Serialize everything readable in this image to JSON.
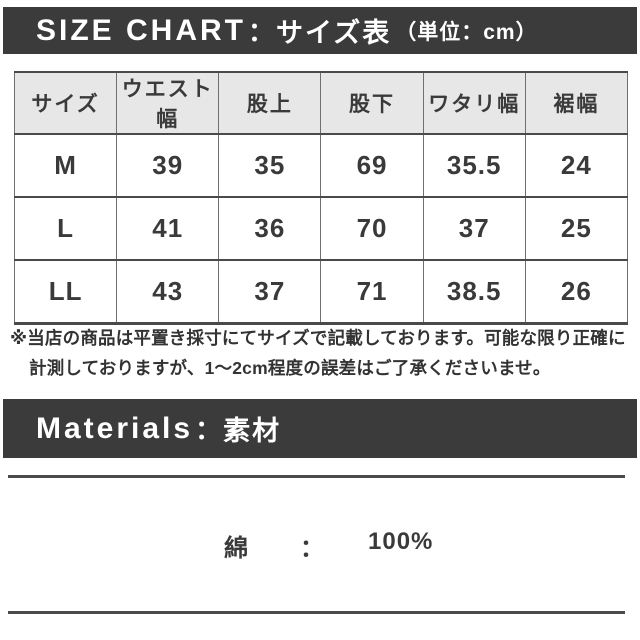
{
  "size_chart": {
    "header": {
      "title_en": "SIZE CHART",
      "separator": "：",
      "title_ja": "サイズ表",
      "unit_note": "（単位：cm）"
    },
    "table": {
      "columns": [
        "サイズ",
        "ウエスト幅",
        "股上",
        "股下",
        "ワタリ幅",
        "裾幅"
      ],
      "rows": [
        {
          "size": "M",
          "values": [
            "39",
            "35",
            "69",
            "35.5",
            "24"
          ]
        },
        {
          "size": "L",
          "values": [
            "41",
            "36",
            "70",
            "37",
            "25"
          ]
        },
        {
          "size": "LL",
          "values": [
            "43",
            "37",
            "71",
            "38.5",
            "26"
          ]
        }
      ]
    },
    "disclaimer": {
      "line1": "※当店の商品は平置き採寸にてサイズで記載しております。可能な限り正確に",
      "line2": "計測しておりますが、1〜2cm程度の誤差はご了承くださいませ。"
    }
  },
  "materials": {
    "header": {
      "title_en": "Materials",
      "separator": "：",
      "title_ja": "素材"
    },
    "items": [
      {
        "name": "綿",
        "separator": "：",
        "value": "100%"
      }
    ]
  },
  "colors": {
    "bar_bg": "#3b3b3b",
    "table_header_bg": "#e7e7e7",
    "border_dark": "#4a4a4a",
    "border_light": "#6f6f6f",
    "text": "#333333"
  }
}
